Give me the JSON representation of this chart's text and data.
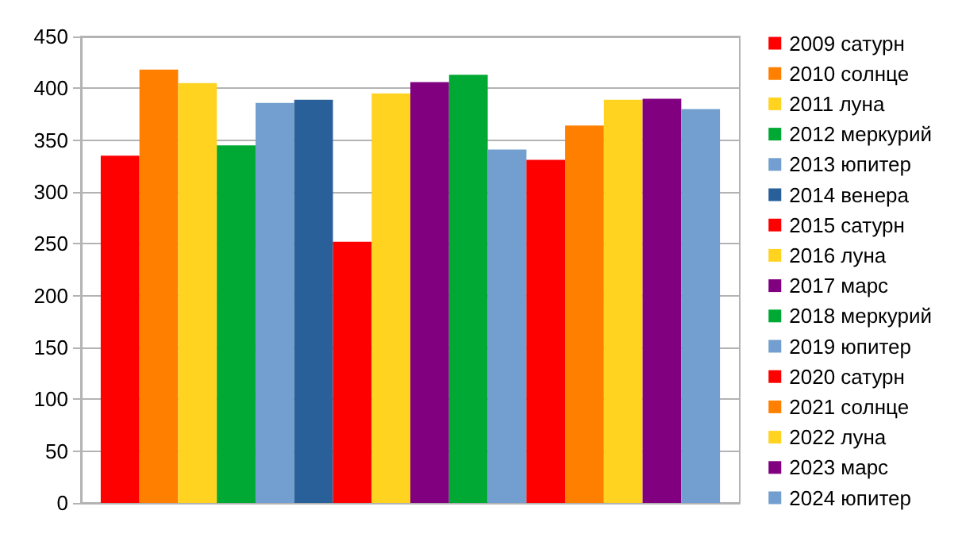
{
  "chart_data": {
    "type": "bar",
    "categories": [
      null
    ],
    "ylim": [
      0,
      450
    ],
    "yticks": [
      0,
      50,
      100,
      150,
      200,
      250,
      300,
      350,
      400,
      450
    ],
    "grid": "y",
    "legend": "right",
    "series": [
      {
        "name": "2009 сатурн",
        "color": "#ff0000",
        "values": [
          335
        ]
      },
      {
        "name": "2010 солнце",
        "color": "#ff8000",
        "values": [
          418
        ]
      },
      {
        "name": "2011 луна",
        "color": "#ffd320",
        "values": [
          405
        ]
      },
      {
        "name": "2012 меркурий",
        "color": "#00a933",
        "values": [
          345
        ]
      },
      {
        "name": "2013 юпитер",
        "color": "#729fcf",
        "values": [
          386
        ]
      },
      {
        "name": "2014 венера",
        "color": "#2a6099",
        "values": [
          389
        ]
      },
      {
        "name": "2015 сатурн",
        "color": "#ff0000",
        "values": [
          252
        ]
      },
      {
        "name": "2016 луна",
        "color": "#ffd320",
        "values": [
          395
        ]
      },
      {
        "name": "2017 марс",
        "color": "#800080",
        "values": [
          406
        ]
      },
      {
        "name": "2018 меркурий",
        "color": "#00a933",
        "values": [
          413
        ]
      },
      {
        "name": "2019 юпитер",
        "color": "#729fcf",
        "values": [
          341
        ]
      },
      {
        "name": "2020 сатурн",
        "color": "#ff0000",
        "values": [
          331
        ]
      },
      {
        "name": "2021 солнце",
        "color": "#ff8000",
        "values": [
          364
        ]
      },
      {
        "name": "2022 луна",
        "color": "#ffd320",
        "values": [
          389
        ]
      },
      {
        "name": "2023 марс",
        "color": "#800080",
        "values": [
          390
        ]
      },
      {
        "name": "2024 юпитер",
        "color": "#729fcf",
        "values": [
          380
        ]
      }
    ]
  }
}
